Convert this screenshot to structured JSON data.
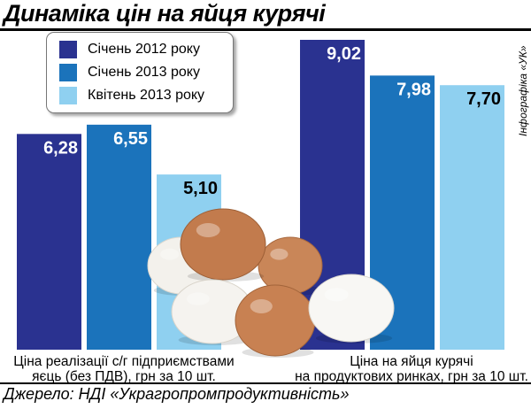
{
  "title": "Динаміка цін на яйця курячі",
  "credit": "Інфографіка «УК»",
  "source": "Джерело: НДІ «Украгропромпродуктивність»",
  "colors": {
    "series_0": "#2a3290",
    "series_1": "#1b73bb",
    "series_2": "#8fd0f0",
    "label_light": "#ffffff",
    "label_dark": "#000000"
  },
  "chart_data": {
    "type": "bar",
    "title": "Динаміка цін на яйця курячі",
    "ylabel": "",
    "xlabel": "",
    "ylim": [
      0,
      9.02
    ],
    "grid": false,
    "legend_position": "top-left",
    "categories": [
      "Ціна реалізації с/г підприємствами яєць (без ПДВ), грн за 10 шт.",
      "Ціна на яйця курячі на продуктових ринках, грн за 10 шт."
    ],
    "category_lines": [
      [
        "Ціна реалізації с/г підприємствами",
        "яєць (без ПДВ), грн за 10 шт."
      ],
      [
        "Ціна на яйця курячі",
        "на продуктових ринках, грн за 10 шт."
      ]
    ],
    "series": [
      {
        "name": "Січень 2012 року",
        "values": [
          6.28,
          9.02
        ],
        "labels": [
          "6,28",
          "9,02"
        ]
      },
      {
        "name": "Січень 2013 року",
        "values": [
          6.55,
          7.98
        ],
        "labels": [
          "6,55",
          "7,98"
        ]
      },
      {
        "name": "Квітень 2013 року",
        "values": [
          5.1,
          7.7
        ],
        "labels": [
          "5,10",
          "7,70"
        ]
      }
    ]
  }
}
